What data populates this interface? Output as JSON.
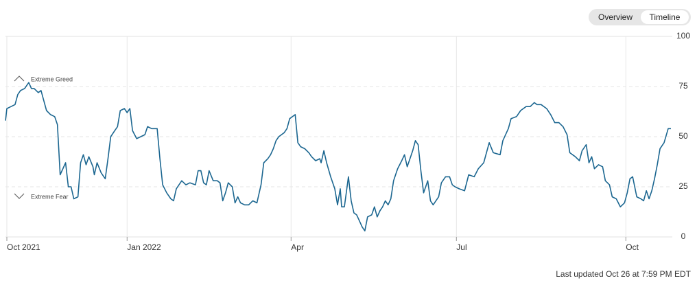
{
  "chart_data": {
    "type": "line",
    "buttons": [
      "Overview",
      "Timeline"
    ],
    "annotations": [
      "Extreme Greed",
      "Extreme Fear"
    ],
    "footer": "Last updated Oct 26 at 7:59 PM EDT",
    "xlim": [
      0,
      244
    ],
    "xticks": [
      {
        "value": 0.5,
        "label": "Oct 2021"
      },
      {
        "value": 44.5,
        "label": "Jan 2022"
      },
      {
        "value": 104.5,
        "label": "Apr"
      },
      {
        "value": 165,
        "label": "Jul"
      },
      {
        "value": 227,
        "label": "Oct"
      }
    ],
    "ylim": [
      0,
      100
    ],
    "yticks": [
      0,
      25,
      50,
      75,
      100
    ],
    "grid": true,
    "series": [
      {
        "color": "#1b6690",
        "x": [
          0,
          0.5,
          2,
          3.5,
          4.5,
          5.5,
          7,
          8.5,
          9.5,
          10.5,
          12,
          13,
          14,
          15,
          16.5,
          18,
          19,
          20,
          22,
          23,
          24,
          25,
          26.5,
          27.5,
          28.5,
          29.5,
          30.5,
          32,
          32.5,
          33.5,
          35,
          36.5,
          37.5,
          38.5,
          40,
          41,
          42,
          43.5,
          44.5,
          45.5,
          46.5,
          48,
          49.5,
          51,
          52,
          53.5,
          55.5,
          56.5,
          57.5,
          59,
          60.5,
          61.5,
          62.5,
          64.5,
          66,
          67.5,
          69.5,
          70.5,
          71.5,
          72.5,
          73.5,
          74.5,
          76,
          77.5,
          78.5,
          79.5,
          80.5,
          81.5,
          83,
          84,
          85,
          86,
          87.5,
          89,
          90.5,
          92,
          93.5,
          94.5,
          96,
          97,
          98,
          99,
          100,
          101,
          102,
          103,
          104,
          106,
          107,
          108,
          109.5,
          111,
          112,
          113.5,
          115,
          115.5,
          116.5,
          117.5,
          119,
          120.5,
          121.5,
          122.5,
          123,
          124,
          125.5,
          126.5,
          127.5,
          128.5,
          129.5,
          130.5,
          131.5,
          132.5,
          134,
          135,
          136,
          137,
          138,
          139,
          140,
          141,
          142,
          143.5,
          145,
          146,
          147,
          148,
          149,
          150,
          151,
          152,
          153,
          154.5,
          155.5,
          156.5,
          157.5,
          158.5,
          159.5,
          161,
          162.5,
          163.5,
          164.5,
          166,
          168,
          169.5,
          171.5,
          173,
          175,
          177,
          178.5,
          181,
          182,
          184,
          185,
          187,
          188.5,
          190.5,
          192,
          193.5,
          194.5,
          196,
          198,
          199.5,
          201,
          202.5,
          204,
          205.5,
          206.5,
          208.5,
          210,
          211,
          212.5,
          213.5,
          214.5,
          215.5,
          217,
          218.5,
          219.5,
          221,
          222,
          223.5,
          225,
          226.5,
          227.5,
          228.5,
          229.5,
          231,
          232.5,
          233.5,
          234.5,
          235.5,
          236.5,
          237.5,
          238.5,
          239.5,
          241,
          242.5,
          243.5
        ],
        "values": [
          58,
          64,
          65,
          66,
          71,
          73,
          74,
          77,
          74,
          74,
          72,
          73,
          68,
          63,
          61,
          60,
          56,
          31,
          37,
          25,
          25,
          19,
          20,
          37,
          41,
          36,
          40,
          35,
          31,
          37,
          32,
          29,
          39,
          50,
          53,
          55,
          63,
          64,
          62,
          64,
          53,
          49,
          50,
          51,
          55,
          54,
          54,
          39,
          26,
          22,
          19,
          18,
          24,
          28,
          26,
          27,
          26,
          33,
          33,
          27,
          26,
          33,
          28,
          28,
          27,
          18,
          22,
          27,
          25,
          17,
          20,
          17,
          16,
          16,
          18,
          17,
          26,
          37,
          39,
          41,
          44,
          48,
          50,
          51,
          52,
          54,
          59,
          61,
          47,
          45,
          44,
          42,
          40,
          38,
          39,
          37,
          43,
          37,
          30,
          24,
          16,
          24,
          15,
          15,
          30,
          18,
          12,
          11,
          8,
          5,
          3,
          10,
          11,
          15,
          10,
          13,
          15,
          18,
          16,
          19,
          28,
          34,
          38,
          41,
          35,
          39,
          43,
          48,
          46,
          33,
          22,
          28,
          18,
          16,
          18,
          20,
          27,
          30,
          30,
          26,
          25,
          24,
          23,
          31,
          30,
          34,
          37,
          47,
          42,
          41,
          48,
          54,
          59,
          60,
          63,
          65,
          65,
          67,
          66,
          66,
          64,
          61,
          57,
          57,
          55,
          51,
          42,
          40,
          38,
          43,
          46,
          37,
          40,
          34,
          36,
          35,
          28,
          26,
          20,
          19,
          15,
          17,
          22,
          29,
          30,
          20,
          19,
          18,
          23,
          19,
          23,
          29,
          36,
          44,
          47,
          54,
          54
        ]
      }
    ]
  }
}
